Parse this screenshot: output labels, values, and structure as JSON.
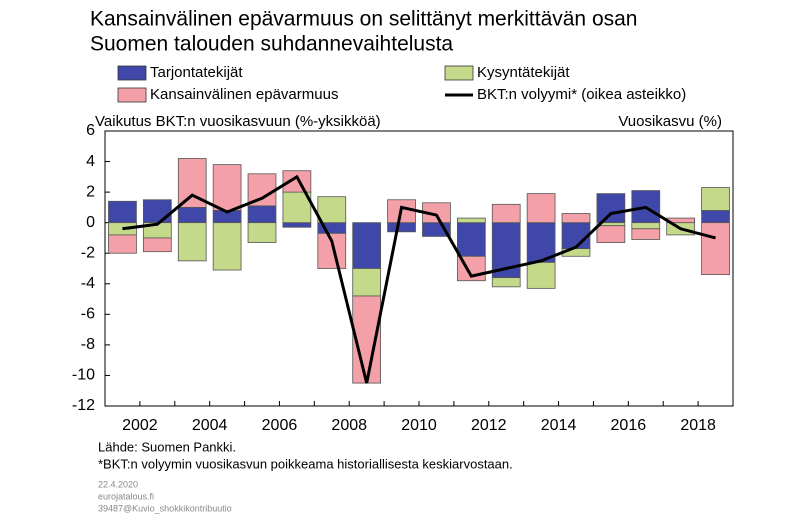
{
  "chart_data": {
    "type": "stacked-bar-line",
    "title": [
      "Kansainvälinen epävarmuus on selittänyt merkittävän osan",
      "Suomen talouden suhdannevaihtelusta"
    ],
    "y_label": "Vaikutus BKT:n vuosikasvuun (%-yksikköä)",
    "y2_label": "Vuosikasvu (%)",
    "categories": [
      null,
      "2002",
      null,
      "2004",
      null,
      "2006",
      null,
      "2008",
      null,
      "2010",
      null,
      "2012",
      null,
      "2014",
      null,
      "2016",
      null,
      "2018"
    ],
    "series": [
      {
        "name": "Tarjontatekijät",
        "color": "#3f48a8",
        "kind": "bar",
        "values": [
          1.4,
          1.5,
          1.0,
          0.8,
          1.1,
          -0.3,
          -0.7,
          -3.0,
          -0.6,
          -0.9,
          -2.2,
          -3.6,
          -2.6,
          -1.7,
          1.9,
          2.1,
          0,
          0.8
        ]
      },
      {
        "name": "Kysyntätekijät",
        "color": "#c5d98b",
        "kind": "bar",
        "values": [
          -0.8,
          -1.0,
          -2.5,
          -3.1,
          -1.3,
          2.0,
          1.7,
          -1.8,
          0,
          0,
          0.3,
          -0.6,
          -1.7,
          -0.5,
          -0.2,
          -0.4,
          -0.8,
          1.5
        ]
      },
      {
        "name": "Kansainvälinen epävarmuus",
        "color": "#f4a0a8",
        "kind": "bar",
        "values": [
          -1.2,
          -0.9,
          3.2,
          3.0,
          2.1,
          1.4,
          -2.3,
          -5.7,
          1.5,
          1.3,
          -1.6,
          1.2,
          1.9,
          0.6,
          -1.1,
          -0.7,
          0.3,
          -3.4
        ]
      },
      {
        "name": "BKT:n volyymi* (oikea asteikko)",
        "color": "#000000",
        "kind": "line",
        "values": [
          -0.4,
          -0.1,
          1.8,
          0.7,
          1.6,
          3.0,
          -1.2,
          -10.5,
          1.0,
          0.5,
          -3.5,
          -3.0,
          -2.5,
          -1.6,
          0.6,
          1.0,
          -0.4,
          -1.0
        ]
      }
    ],
    "ylim": [
      -12,
      6
    ],
    "yticks": [
      -12,
      -10,
      -8,
      -6,
      -4,
      -2,
      0,
      2,
      4,
      6
    ],
    "notes": [
      "Lähde: Suomen Pankki.",
      "*BKT:n volyymin vuosikasvun  poikkeama historiallisesta keskiarvostaan."
    ],
    "footer": [
      "22.4.2020",
      "eurojatalous.fi",
      "39487@Kuvio_shokkikontribuutio"
    ]
  }
}
